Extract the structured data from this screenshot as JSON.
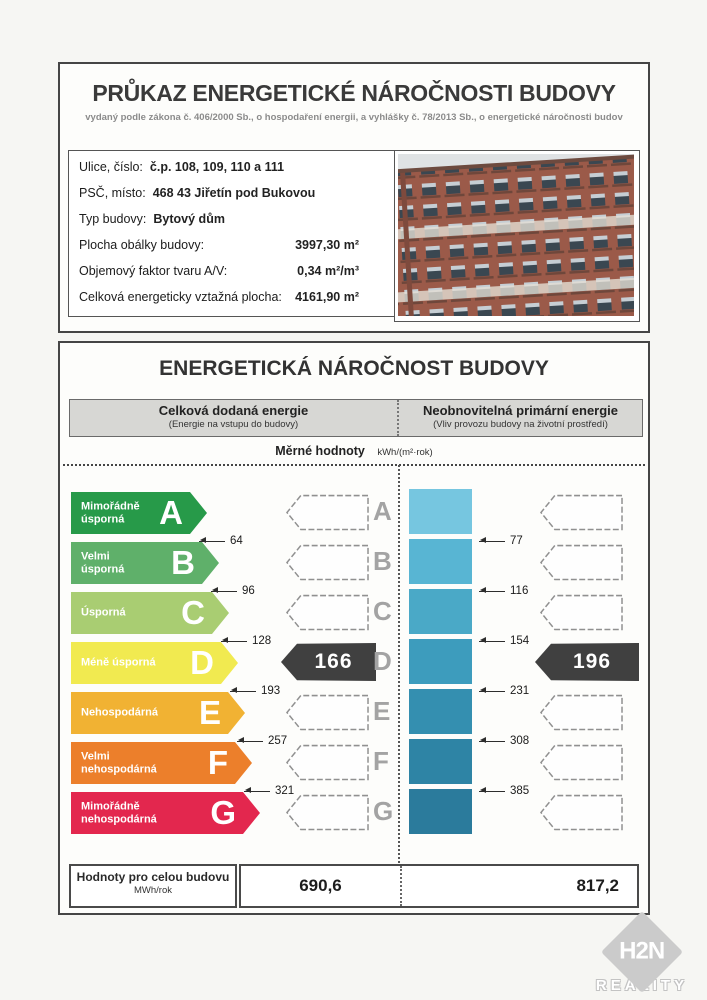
{
  "header": {
    "title": "PRŮKAZ ENERGETICKÉ NÁROČNOSTI BUDOVY",
    "subtitle": "vydaný podle zákona č. 406/2000 Sb., o hospodaření energii, a vyhlášky č. 78/2013 Sb., o energetické náročnosti budov"
  },
  "building": {
    "rows": [
      {
        "label": "Ulice, číslo:",
        "value": "č.p. 108, 109, 110 a 111"
      },
      {
        "label": "PSČ, místo:",
        "value": "468 43 Jiřetín pod Bukovou"
      },
      {
        "label": "Typ budovy:",
        "value": "Bytový dům"
      },
      {
        "label": "Plocha obálky budovy:",
        "value": "3997,30 m²"
      },
      {
        "label": "Objemový faktor tvaru A/V:",
        "value": "0,34 m²/m³"
      },
      {
        "label": "Celková energeticky vztažná plocha:",
        "value": "4161,90 m²"
      }
    ]
  },
  "section": {
    "title": "ENERGETICKÁ NÁROČNOST BUDOVY",
    "columns": [
      {
        "title": "Celková dodaná energie",
        "subtitle": "(Energie na vstupu do budovy)"
      },
      {
        "title": "Neobnovitelná primární energie",
        "subtitle": "(Vliv provozu budovy na životní prostředí)"
      }
    ],
    "measure_label": "Měrné hodnoty",
    "measure_unit": "kWh/(m²·rok)"
  },
  "scale": {
    "classes": [
      {
        "letter": "A",
        "label": "Mimořádně\núsporná",
        "color": "#279a49",
        "bar_color": "#76c6e0",
        "threshold_left": "64",
        "threshold_right": "77"
      },
      {
        "letter": "B",
        "label": "Velmi\núsporná",
        "color": "#5fb06a",
        "bar_color": "#58b5d3",
        "threshold_left": "96",
        "threshold_right": "116"
      },
      {
        "letter": "C",
        "label": "Úsporná",
        "color": "#a9cd72",
        "bar_color": "#4aa9c7",
        "threshold_left": "128",
        "threshold_right": "154"
      },
      {
        "letter": "D",
        "label": "Méně úsporná",
        "color": "#f1ea50",
        "bar_color": "#3d9cbd",
        "threshold_left": "193",
        "threshold_right": "231"
      },
      {
        "letter": "E",
        "label": "Nehospodárná",
        "color": "#f1b233",
        "bar_color": "#348fb0",
        "threshold_left": "257",
        "threshold_right": "308"
      },
      {
        "letter": "F",
        "label": "Velmi\nnehospodárná",
        "color": "#ec7f2b",
        "bar_color": "#2e84a5",
        "threshold_left": "321",
        "threshold_right": "385"
      },
      {
        "letter": "G",
        "label": "Mimořádně\nnehospodárná",
        "color": "#e3274e",
        "bar_color": "#2b7b9c",
        "threshold_left": "",
        "threshold_right": ""
      }
    ],
    "indicator_color": "#404040"
  },
  "indicators": {
    "left_value": "166",
    "right_value": "196"
  },
  "totals": {
    "label": "Hodnoty pro celou budovu",
    "unit": "MWh/rok",
    "left_value": "690,6",
    "right_value": "817,2"
  },
  "watermark": {
    "monogram": "H2N",
    "text": "REALITY"
  }
}
